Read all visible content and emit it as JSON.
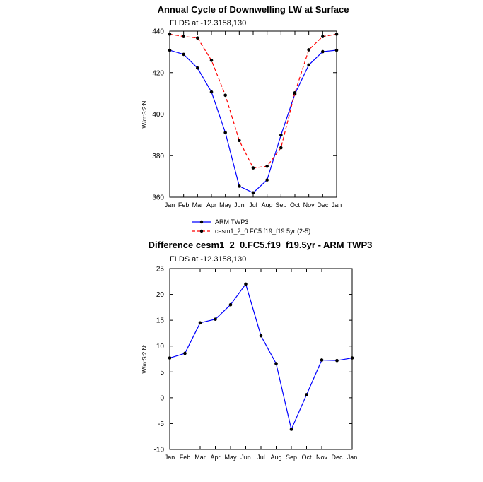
{
  "colors": {
    "arm": "#0000ff",
    "cesm": "#ff0000",
    "diff": "#0000ff",
    "marker": "#000000",
    "axis": "#000000",
    "background": "#ffffff"
  },
  "chart_data": [
    {
      "type": "line",
      "title": "Annual Cycle of Downwelling LW at Surface",
      "subtitle": "FLDS at -12.3158,130",
      "xlabel": "",
      "ylabel": "W/m:S:2:N:",
      "categories": [
        "Jan",
        "Feb",
        "Mar",
        "Apr",
        "May",
        "Jun",
        "Jul",
        "Aug",
        "Sep",
        "Oct",
        "Nov",
        "Dec",
        "Jan"
      ],
      "ylim": [
        360,
        440
      ],
      "yticks": [
        360,
        380,
        400,
        420,
        440
      ],
      "grid": false,
      "legend": "below",
      "series": [
        {
          "name": "ARM TWP3",
          "style": "solid",
          "color": "#0000ff",
          "values": [
            430.8,
            428.8,
            422.2,
            410.7,
            391.1,
            365.3,
            362.1,
            368.3,
            389.9,
            409.7,
            423.7,
            430.1,
            430.8
          ]
        },
        {
          "name": "cesm1_2_0.FC5.f19_f19.5yr (2-5)",
          "style": "dashed",
          "color": "#ff0000",
          "values": [
            438.5,
            437.4,
            436.7,
            425.9,
            409.1,
            387.3,
            374.1,
            374.9,
            383.8,
            410.3,
            431.0,
            437.4,
            438.5
          ]
        }
      ]
    },
    {
      "type": "line",
      "title": "Difference cesm1_2_0.FC5.f19_f19.5yr - ARM TWP3",
      "subtitle": "FLDS at -12.3158,130",
      "xlabel": "",
      "ylabel": "W/m:S:2:N:",
      "categories": [
        "Jan",
        "Feb",
        "Mar",
        "Apr",
        "May",
        "Jun",
        "Jul",
        "Aug",
        "Sep",
        "Oct",
        "Nov",
        "Dec",
        "Jan"
      ],
      "ylim": [
        -10,
        25
      ],
      "yticks": [
        -10,
        -5,
        0,
        5,
        10,
        15,
        20,
        25
      ],
      "grid": false,
      "series": [
        {
          "style": "solid",
          "color": "#0000ff",
          "values": [
            7.7,
            8.6,
            14.5,
            15.2,
            18.0,
            22.0,
            12.0,
            6.6,
            -6.1,
            0.6,
            7.3,
            7.2,
            7.7
          ]
        }
      ]
    }
  ]
}
